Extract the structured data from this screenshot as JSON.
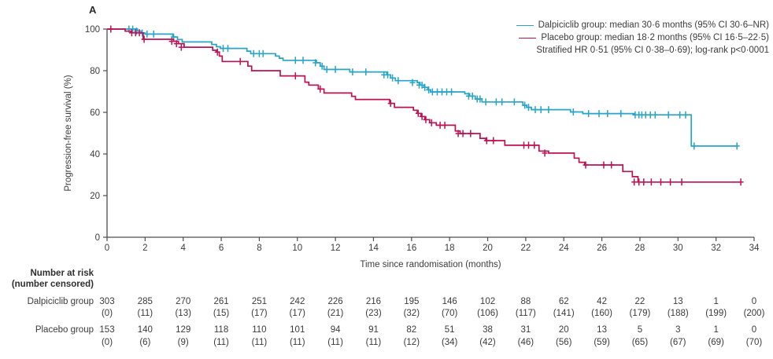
{
  "panel_label": "A",
  "colors": {
    "dalpiciclib": "#26A5C8",
    "placebo": "#BE1152",
    "axis": "#4d4d4f",
    "text": "#3b3b3b"
  },
  "chart_data": {
    "type": "line",
    "subtype": "kaplan_meier_step",
    "title": "",
    "xlabel": "Time since randomisation (months)",
    "ylabel": "Progression-free survival (%)",
    "xlim": [
      0,
      34
    ],
    "ylim": [
      0,
      100
    ],
    "xticks": [
      0,
      2,
      4,
      6,
      8,
      10,
      12,
      14,
      16,
      18,
      20,
      22,
      24,
      26,
      28,
      30,
      32,
      34
    ],
    "yticks": [
      0,
      20,
      40,
      60,
      80,
      100
    ],
    "grid": false,
    "legend_position": "top-right",
    "legend": [
      {
        "name": "Dalpiciclib group",
        "label": "Dalpiciclib group: median 30·6 months (95% CI 30·6–NR)",
        "color": "#26A5C8"
      },
      {
        "name": "Placebo group",
        "label": "Placebo group: median 18·2 months (95% CI 16·5–22·5)",
        "color": "#BE1152"
      }
    ],
    "annotation": "Stratified HR 0·51 (95% CI 0·38–0·69); log-rank p<0·0001",
    "series": [
      {
        "name": "Dalpiciclib group",
        "color": "#26A5C8",
        "start": [
          0,
          100
        ],
        "end_time": 33.15,
        "steps": [
          [
            1.6,
            99.0
          ],
          [
            1.8,
            98.1
          ],
          [
            2.0,
            97.6
          ],
          [
            3.45,
            96.2
          ],
          [
            3.7,
            95.0
          ],
          [
            3.95,
            93.8
          ],
          [
            5.5,
            92.6
          ],
          [
            5.75,
            91.5
          ],
          [
            5.95,
            90.7
          ],
          [
            7.35,
            89.4
          ],
          [
            7.55,
            88.2
          ],
          [
            8.85,
            87.0
          ],
          [
            9.05,
            86.0
          ],
          [
            9.25,
            85.0
          ],
          [
            11.0,
            83.8
          ],
          [
            11.2,
            82.2
          ],
          [
            11.4,
            80.6
          ],
          [
            12.75,
            79.4
          ],
          [
            14.7,
            78.0
          ],
          [
            14.9,
            76.5
          ],
          [
            15.15,
            75.2
          ],
          [
            16.3,
            74.3
          ],
          [
            16.45,
            73.1
          ],
          [
            16.65,
            72.0
          ],
          [
            16.85,
            70.8
          ],
          [
            17.0,
            69.8
          ],
          [
            18.8,
            68.9
          ],
          [
            19.05,
            67.8
          ],
          [
            19.35,
            66.4
          ],
          [
            19.7,
            65.0
          ],
          [
            21.85,
            63.4
          ],
          [
            22.05,
            62.4
          ],
          [
            22.3,
            61.3
          ],
          [
            24.35,
            60.2
          ],
          [
            25.0,
            59.4
          ],
          [
            27.7,
            58.8
          ],
          [
            30.7,
            43.8
          ]
        ],
        "censor_marks": [
          [
            1.15,
            100
          ],
          [
            1.35,
            100
          ],
          [
            1.55,
            99.0
          ],
          [
            1.85,
            98.1
          ],
          [
            2.1,
            97.6
          ],
          [
            2.45,
            97.6
          ],
          [
            3.5,
            96.2
          ],
          [
            6.1,
            90.7
          ],
          [
            6.35,
            90.7
          ],
          [
            7.7,
            88.2
          ],
          [
            8.0,
            88.2
          ],
          [
            8.2,
            88.2
          ],
          [
            9.9,
            85.0
          ],
          [
            10.3,
            85.0
          ],
          [
            10.95,
            83.8
          ],
          [
            11.3,
            82.2
          ],
          [
            11.55,
            80.6
          ],
          [
            12.0,
            80.6
          ],
          [
            12.9,
            79.4
          ],
          [
            13.6,
            79.4
          ],
          [
            14.55,
            78.0
          ],
          [
            14.75,
            78.0
          ],
          [
            15.0,
            76.5
          ],
          [
            15.3,
            75.2
          ],
          [
            16.05,
            74.3
          ],
          [
            16.4,
            73.1
          ],
          [
            16.55,
            73.1
          ],
          [
            16.7,
            72.0
          ],
          [
            16.9,
            70.8
          ],
          [
            17.1,
            69.8
          ],
          [
            17.35,
            69.8
          ],
          [
            17.6,
            69.8
          ],
          [
            17.85,
            69.8
          ],
          [
            18.1,
            69.8
          ],
          [
            19.0,
            67.8
          ],
          [
            19.2,
            67.8
          ],
          [
            19.45,
            66.4
          ],
          [
            19.6,
            66.4
          ],
          [
            19.9,
            65.0
          ],
          [
            20.45,
            65.0
          ],
          [
            20.75,
            65.0
          ],
          [
            21.4,
            65.0
          ],
          [
            21.95,
            63.4
          ],
          [
            22.15,
            62.4
          ],
          [
            22.5,
            61.3
          ],
          [
            22.8,
            61.3
          ],
          [
            23.2,
            61.3
          ],
          [
            24.5,
            60.2
          ],
          [
            25.3,
            59.4
          ],
          [
            25.85,
            59.4
          ],
          [
            26.3,
            59.4
          ],
          [
            27.0,
            59.4
          ],
          [
            27.75,
            58.8
          ],
          [
            27.95,
            58.8
          ],
          [
            28.1,
            58.8
          ],
          [
            28.3,
            58.8
          ],
          [
            28.55,
            58.8
          ],
          [
            28.8,
            58.8
          ],
          [
            29.5,
            58.8
          ],
          [
            30.1,
            58.8
          ],
          [
            30.4,
            58.8
          ],
          [
            30.85,
            43.8
          ],
          [
            33.1,
            43.8
          ]
        ]
      },
      {
        "name": "Placebo group",
        "color": "#BE1152",
        "start": [
          0,
          100
        ],
        "end_time": 33.3,
        "steps": [
          [
            0.95,
            99.0
          ],
          [
            1.25,
            98.2
          ],
          [
            1.9,
            95.1
          ],
          [
            3.5,
            94.1
          ],
          [
            3.75,
            93.0
          ],
          [
            4.05,
            91.3
          ],
          [
            5.55,
            89.8
          ],
          [
            5.75,
            89.0
          ],
          [
            5.9,
            87.0
          ],
          [
            6.05,
            84.4
          ],
          [
            7.4,
            82.2
          ],
          [
            7.6,
            80.0
          ],
          [
            9.1,
            77.5
          ],
          [
            10.4,
            74.5
          ],
          [
            10.6,
            73.1
          ],
          [
            11.1,
            71.2
          ],
          [
            11.4,
            69.3
          ],
          [
            12.85,
            67.7
          ],
          [
            13.05,
            66.2
          ],
          [
            14.85,
            64.3
          ],
          [
            15.1,
            62.4
          ],
          [
            16.1,
            61.0
          ],
          [
            16.3,
            59.5
          ],
          [
            16.5,
            58.0
          ],
          [
            16.7,
            56.5
          ],
          [
            16.95,
            55.0
          ],
          [
            17.3,
            53.8
          ],
          [
            18.3,
            51.0
          ],
          [
            18.55,
            49.8
          ],
          [
            19.6,
            47.5
          ],
          [
            19.9,
            46.4
          ],
          [
            20.9,
            44.2
          ],
          [
            22.7,
            41.4
          ],
          [
            23.2,
            40.4
          ],
          [
            24.55,
            38.0
          ],
          [
            24.8,
            36.0
          ],
          [
            25.1,
            34.7
          ],
          [
            27.1,
            31.6
          ],
          [
            27.6,
            29.1
          ],
          [
            27.9,
            26.5
          ]
        ],
        "censor_marks": [
          [
            0.2,
            100
          ],
          [
            1.3,
            98.2
          ],
          [
            1.5,
            98.2
          ],
          [
            1.7,
            98.2
          ],
          [
            1.95,
            95.1
          ],
          [
            3.4,
            94.1
          ],
          [
            3.65,
            93.0
          ],
          [
            3.9,
            91.3
          ],
          [
            5.8,
            89.0
          ],
          [
            7.0,
            84.4
          ],
          [
            9.9,
            77.5
          ],
          [
            11.2,
            71.2
          ],
          [
            14.9,
            64.3
          ],
          [
            16.35,
            59.5
          ],
          [
            16.55,
            58.0
          ],
          [
            16.75,
            56.5
          ],
          [
            17.05,
            55.0
          ],
          [
            17.5,
            53.8
          ],
          [
            17.75,
            53.8
          ],
          [
            18.45,
            49.8
          ],
          [
            18.7,
            49.8
          ],
          [
            19.1,
            49.8
          ],
          [
            19.95,
            46.4
          ],
          [
            20.3,
            46.4
          ],
          [
            21.9,
            44.2
          ],
          [
            22.15,
            44.2
          ],
          [
            22.45,
            44.2
          ],
          [
            23.0,
            40.4
          ],
          [
            25.15,
            34.7
          ],
          [
            26.1,
            34.7
          ],
          [
            26.5,
            34.7
          ],
          [
            27.7,
            26.5
          ],
          [
            27.95,
            26.5
          ],
          [
            28.2,
            26.5
          ],
          [
            28.6,
            26.5
          ],
          [
            29.1,
            26.5
          ],
          [
            29.6,
            26.5
          ],
          [
            30.2,
            26.5
          ],
          [
            33.3,
            26.5
          ]
        ]
      }
    ]
  },
  "at_risk_table": {
    "header_line1": "Number at risk",
    "header_line2": "(number censored)",
    "times": [
      0,
      2,
      4,
      6,
      8,
      10,
      12,
      14,
      16,
      18,
      20,
      22,
      24,
      26,
      28,
      30,
      32,
      34
    ],
    "rows": [
      {
        "label": "Dalpiciclib group",
        "at_risk": [
          303,
          285,
          270,
          261,
          251,
          242,
          226,
          216,
          195,
          146,
          102,
          88,
          62,
          42,
          22,
          13,
          1,
          0
        ],
        "censored": [
          "(0)",
          "(11)",
          "(13)",
          "(15)",
          "(17)",
          "(17)",
          "(21)",
          "(23)",
          "(32)",
          "(70)",
          "(106)",
          "(117)",
          "(141)",
          "(160)",
          "(179)",
          "(188)",
          "(199)",
          "(200)"
        ]
      },
      {
        "label": "Placebo group",
        "at_risk": [
          153,
          140,
          129,
          118,
          110,
          101,
          94,
          91,
          82,
          51,
          38,
          31,
          20,
          13,
          5,
          3,
          1,
          0
        ],
        "censored": [
          "(0)",
          "(6)",
          "(9)",
          "(11)",
          "(11)",
          "(11)",
          "(11)",
          "(11)",
          "(12)",
          "(34)",
          "(42)",
          "(46)",
          "(56)",
          "(59)",
          "(65)",
          "(67)",
          "(69)",
          "(70)"
        ]
      }
    ]
  }
}
